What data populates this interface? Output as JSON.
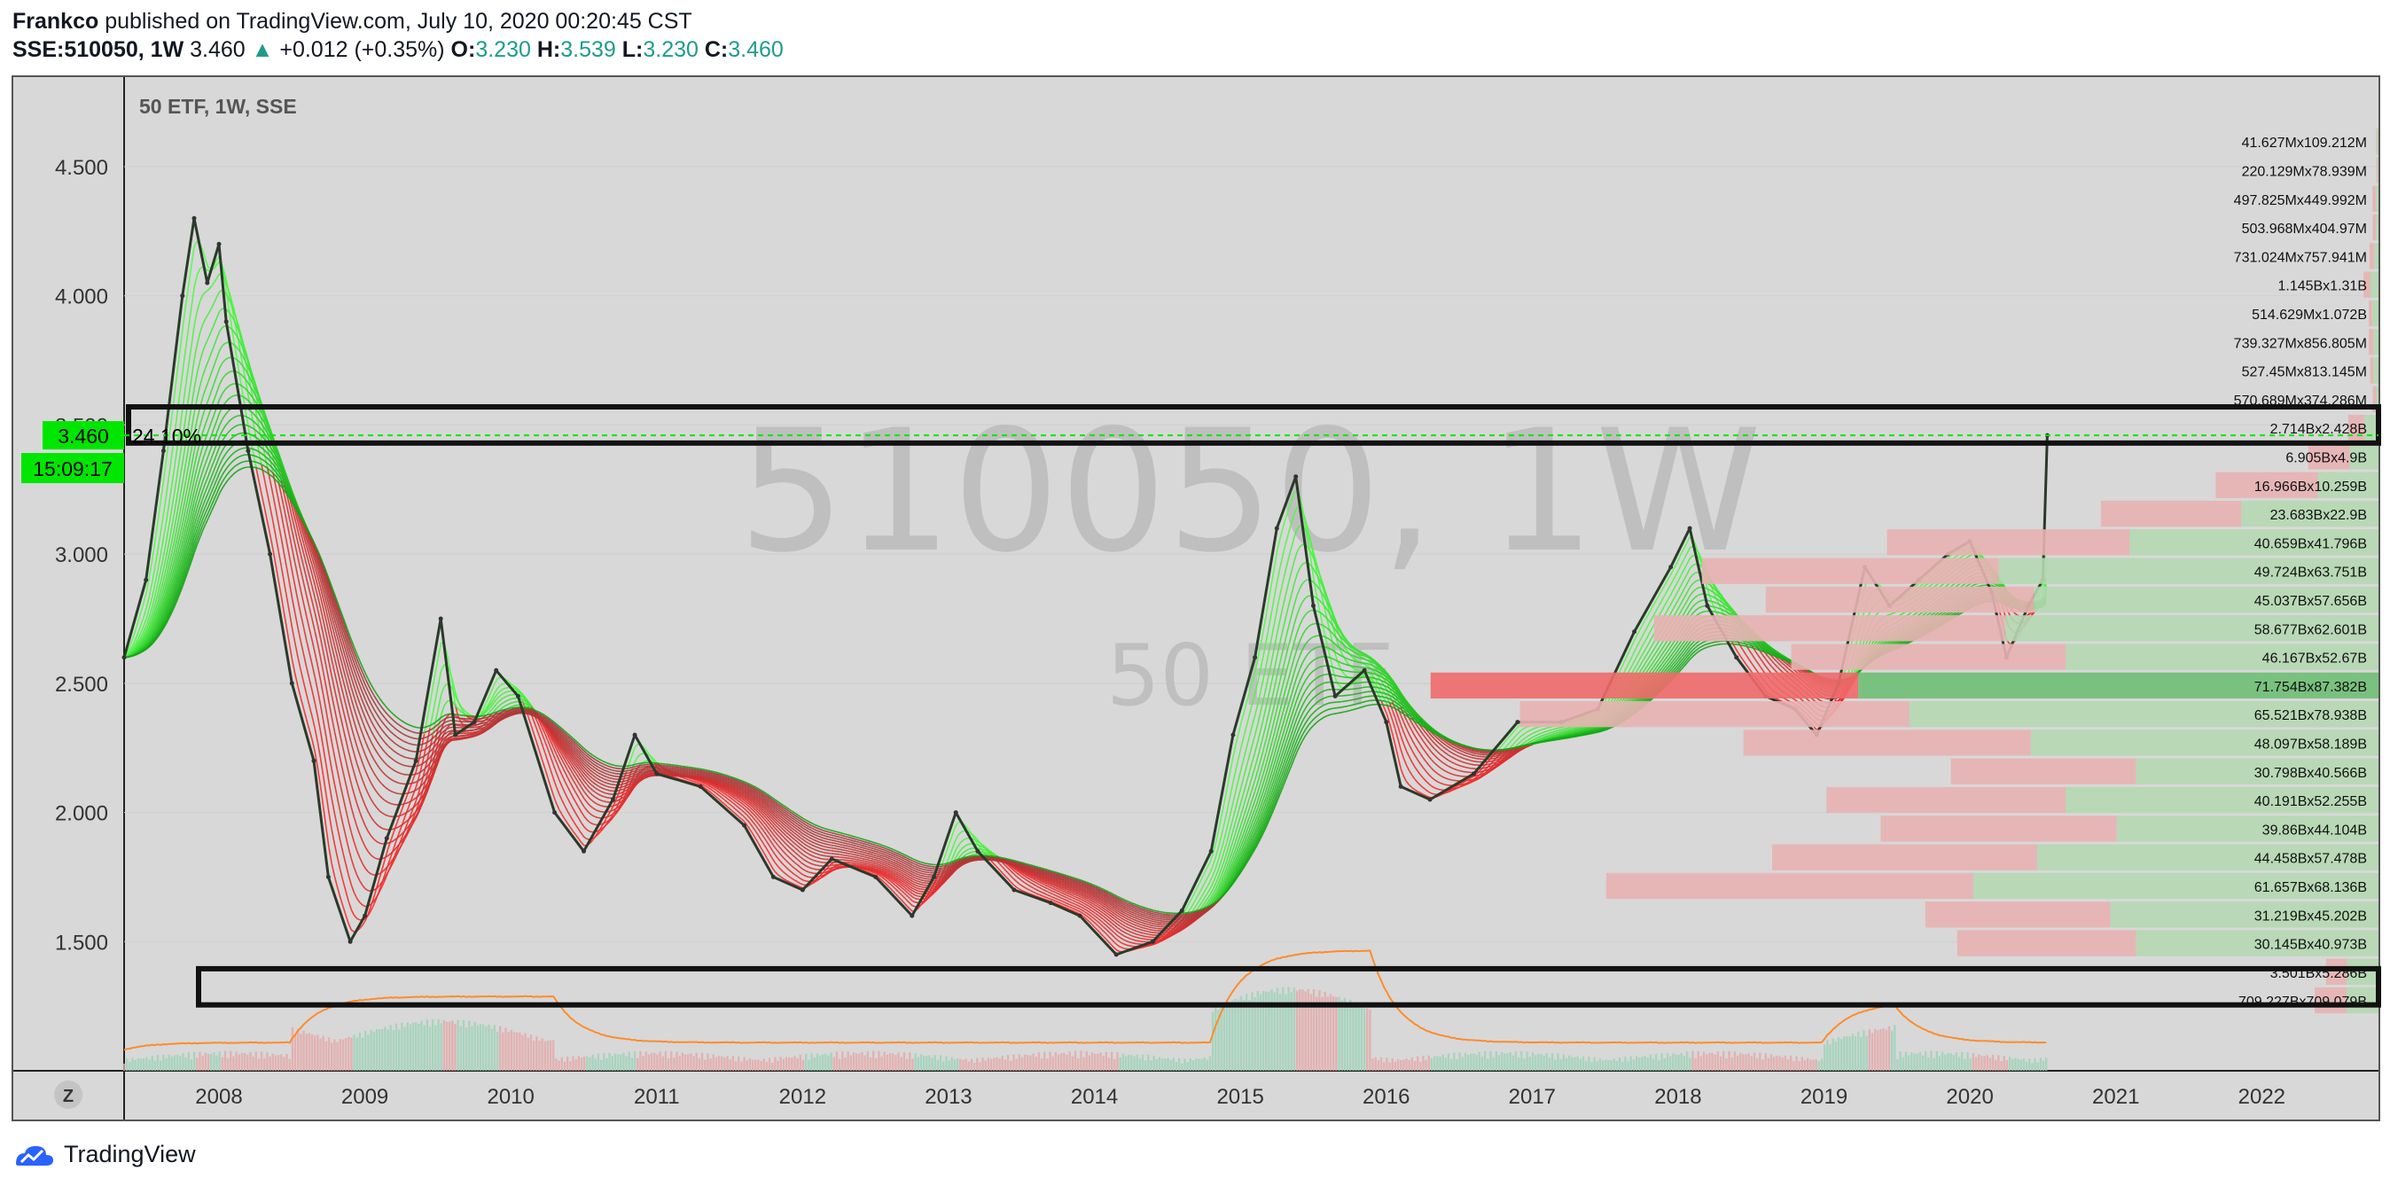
{
  "header": {
    "author": "Frankco",
    "published_text": "published on TradingView.com, July 10, 2020 00:20:45 CST",
    "symbol": "SSE:510050, 1W",
    "last": "3.460",
    "change": "+0.012 (+0.35%)",
    "o_label": "O:",
    "o": "3.230",
    "h_label": "H:",
    "h": "3.539",
    "l_label": "L:",
    "l": "3.230",
    "c_label": "C:",
    "c": "3.460"
  },
  "pane": {
    "legend": "50 ETF, 1W, SSE",
    "watermark_big": "510050, 1W",
    "watermark_small": "50 ETF",
    "price_tag": "3.460",
    "pct_tag": "24.10%",
    "countdown": "15:09:17",
    "tz_button": "Z"
  },
  "footer": {
    "brand": "TradingView"
  },
  "colors": {
    "pane_bg": "#d8d8d8",
    "up": "#26a69a",
    "down": "#ef5350",
    "ribbon_up": "#00ff00",
    "ribbon_down": "#ff0000",
    "accent_green": "#00e600",
    "volume_ma": "#ff8c2a"
  },
  "chart_data": {
    "type": "line",
    "title": "50 ETF, 1W, SSE",
    "ylim": [
      1.0,
      4.85
    ],
    "y_ticks": [
      "4.500",
      "4.000",
      "3.500",
      "3.000",
      "2.500",
      "2.000",
      "1.500"
    ],
    "y_tick_values": [
      4.5,
      4.0,
      3.5,
      3.0,
      2.5,
      2.0,
      1.5
    ],
    "x_ticks": [
      "2008",
      "2009",
      "2010",
      "2011",
      "2012",
      "2013",
      "2014",
      "2015",
      "2016",
      "2017",
      "2018",
      "2019",
      "2020",
      "2021",
      "2022"
    ],
    "xlim": [
      2007.35,
      2022.8
    ],
    "price_path": [
      [
        2007.35,
        2.6
      ],
      [
        2007.5,
        2.9
      ],
      [
        2007.62,
        3.4
      ],
      [
        2007.75,
        4.0
      ],
      [
        2007.83,
        4.3
      ],
      [
        2007.92,
        4.05
      ],
      [
        2008.0,
        4.2
      ],
      [
        2008.05,
        3.9
      ],
      [
        2008.2,
        3.4
      ],
      [
        2008.35,
        3.0
      ],
      [
        2008.5,
        2.5
      ],
      [
        2008.65,
        2.2
      ],
      [
        2008.75,
        1.75
      ],
      [
        2008.9,
        1.5
      ],
      [
        2009.0,
        1.6
      ],
      [
        2009.15,
        1.9
      ],
      [
        2009.35,
        2.2
      ],
      [
        2009.52,
        2.75
      ],
      [
        2009.62,
        2.3
      ],
      [
        2009.75,
        2.35
      ],
      [
        2009.9,
        2.55
      ],
      [
        2010.05,
        2.45
      ],
      [
        2010.3,
        2.0
      ],
      [
        2010.5,
        1.85
      ],
      [
        2010.7,
        2.05
      ],
      [
        2010.85,
        2.3
      ],
      [
        2011.0,
        2.15
      ],
      [
        2011.3,
        2.1
      ],
      [
        2011.6,
        1.95
      ],
      [
        2011.8,
        1.75
      ],
      [
        2012.0,
        1.7
      ],
      [
        2012.2,
        1.82
      ],
      [
        2012.5,
        1.75
      ],
      [
        2012.75,
        1.6
      ],
      [
        2012.9,
        1.75
      ],
      [
        2013.05,
        2.0
      ],
      [
        2013.2,
        1.85
      ],
      [
        2013.45,
        1.7
      ],
      [
        2013.7,
        1.65
      ],
      [
        2013.9,
        1.6
      ],
      [
        2014.15,
        1.45
      ],
      [
        2014.4,
        1.5
      ],
      [
        2014.6,
        1.62
      ],
      [
        2014.8,
        1.85
      ],
      [
        2014.95,
        2.3
      ],
      [
        2015.1,
        2.6
      ],
      [
        2015.25,
        3.1
      ],
      [
        2015.38,
        3.3
      ],
      [
        2015.5,
        2.8
      ],
      [
        2015.65,
        2.45
      ],
      [
        2015.85,
        2.55
      ],
      [
        2016.0,
        2.35
      ],
      [
        2016.1,
        2.1
      ],
      [
        2016.3,
        2.05
      ],
      [
        2016.6,
        2.15
      ],
      [
        2016.9,
        2.35
      ],
      [
        2017.2,
        2.35
      ],
      [
        2017.45,
        2.4
      ],
      [
        2017.7,
        2.7
      ],
      [
        2017.95,
        2.95
      ],
      [
        2018.08,
        3.1
      ],
      [
        2018.2,
        2.8
      ],
      [
        2018.4,
        2.6
      ],
      [
        2018.6,
        2.45
      ],
      [
        2018.8,
        2.4
      ],
      [
        2018.95,
        2.3
      ],
      [
        2019.1,
        2.5
      ],
      [
        2019.28,
        2.95
      ],
      [
        2019.45,
        2.8
      ],
      [
        2019.65,
        2.9
      ],
      [
        2019.85,
        3.0
      ],
      [
        2020.0,
        3.05
      ],
      [
        2020.15,
        2.85
      ],
      [
        2020.25,
        2.6
      ],
      [
        2020.4,
        2.8
      ],
      [
        2020.5,
        2.9
      ],
      [
        2020.53,
        3.46
      ]
    ],
    "volume_profile_labels": [
      "41.627Mx109.212M",
      "220.129Mx78.939M",
      "497.825Mx449.992M",
      "503.968Mx404.97M",
      "731.024Mx757.941M",
      "1.145Bx1.31B",
      "514.629Mx1.072B",
      "739.327Mx856.805M",
      "527.45Mx813.145M",
      "570.689Mx374.286M",
      "2.714Bx2.428B",
      "6.905Bx4.9B",
      "16.966Bx10.259B",
      "23.683Bx22.9B",
      "40.659Bx41.796B",
      "49.724Bx63.751B",
      "45.037Bx57.656B",
      "58.677Bx62.601B",
      "46.167Bx52.67B",
      "71.754Bx87.382B",
      "65.521Bx78.938B",
      "48.097Bx58.189B",
      "30.798Bx40.566B",
      "40.191Bx52.255B",
      "39.86Bx44.104B",
      "44.458Bx57.478B",
      "61.657Bx68.136B",
      "31.219Bx45.202B",
      "30.145Bx40.973B",
      "3.501Bx5.286B",
      "709.227Bx709.079B"
    ],
    "volume_profile_rows": [
      {
        "red": 0.2,
        "green": 0.5
      },
      {
        "red": 0.3,
        "green": 0.3
      },
      {
        "red": 1.0,
        "green": 0.9
      },
      {
        "red": 1.0,
        "green": 0.8
      },
      {
        "red": 1.4,
        "green": 1.4
      },
      {
        "red": 2.2,
        "green": 2.5
      },
      {
        "red": 1.0,
        "green": 2.0
      },
      {
        "red": 1.4,
        "green": 1.6
      },
      {
        "red": 1.0,
        "green": 1.6
      },
      {
        "red": 1.1,
        "green": 0.7
      },
      {
        "red": 5,
        "green": 4.5
      },
      {
        "red": 13,
        "green": 9
      },
      {
        "red": 32,
        "green": 19
      },
      {
        "red": 44,
        "green": 43
      },
      {
        "red": 76,
        "green": 78
      },
      {
        "red": 93,
        "green": 119
      },
      {
        "red": 84,
        "green": 108
      },
      {
        "red": 110,
        "green": 117
      },
      {
        "red": 86,
        "green": 98
      },
      {
        "red": 134,
        "green": 163
      },
      {
        "red": 122,
        "green": 147
      },
      {
        "red": 90,
        "green": 109
      },
      {
        "red": 58,
        "green": 76
      },
      {
        "red": 75,
        "green": 98
      },
      {
        "red": 74,
        "green": 82
      },
      {
        "red": 83,
        "green": 107
      },
      {
        "red": 115,
        "green": 127
      },
      {
        "red": 58,
        "green": 84
      },
      {
        "red": 56,
        "green": 76
      },
      {
        "red": 6.5,
        "green": 9.9
      },
      {
        "red": 10,
        "green": 10
      }
    ],
    "key_levels": [
      {
        "label": "resistance-zone",
        "low": 3.43,
        "high": 3.57
      },
      {
        "label": "support-zone",
        "low": 1.255,
        "high": 1.395
      }
    ]
  }
}
